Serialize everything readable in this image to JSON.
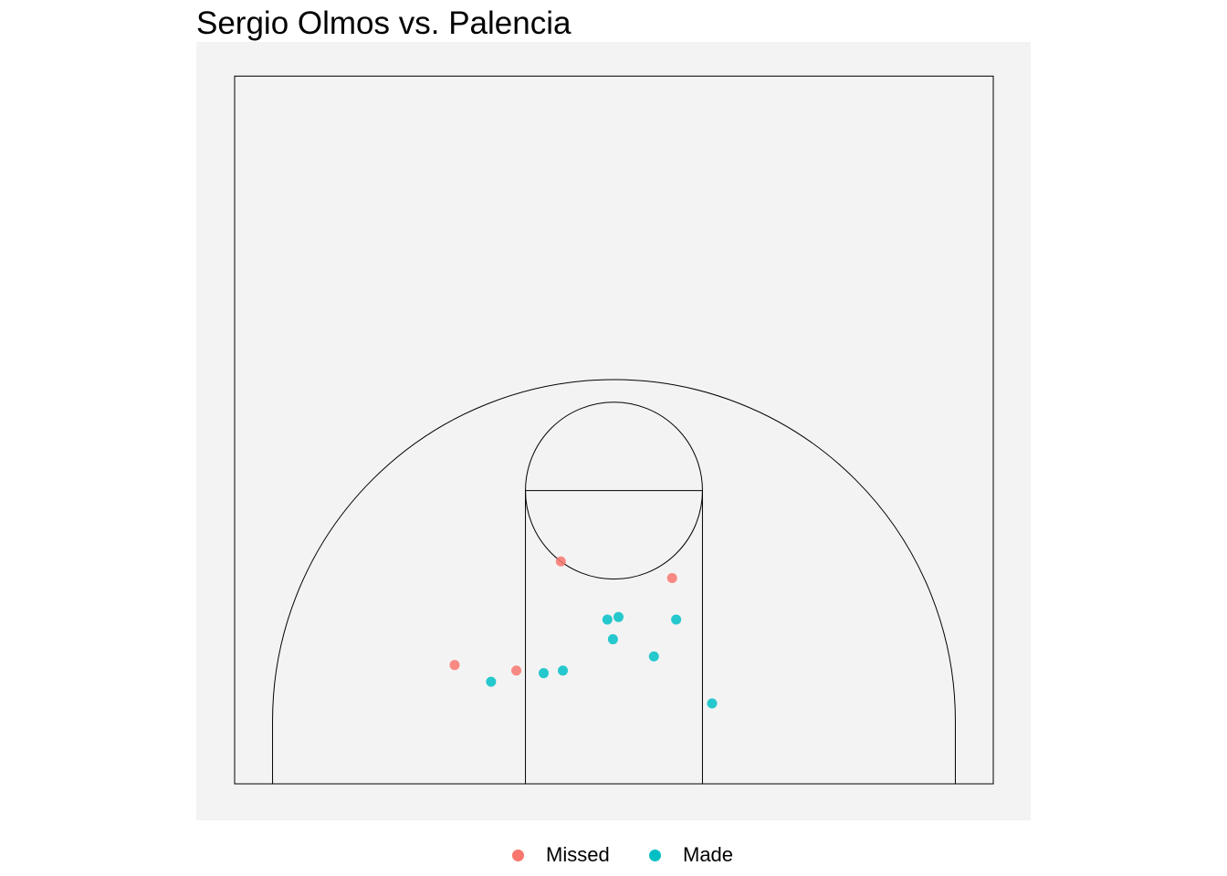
{
  "title": "Sergio Olmos vs. Palencia",
  "colors": {
    "panel": "#f3f3f3",
    "court_lines": "#000000",
    "missed": "#f8766d",
    "made": "#00bfc4"
  },
  "chart_data": {
    "type": "scatter",
    "title": "Sergio Olmos vs. Palencia",
    "xlabel": "",
    "ylabel": "",
    "grid": false,
    "legend_position": "bottom",
    "legend": [
      {
        "label": "Missed",
        "color": "#f8766d"
      },
      {
        "label": "Made",
        "color": "#00bfc4"
      }
    ],
    "court": {
      "units": "m",
      "width": 15,
      "length": 14,
      "key_width": 3.5,
      "free_throw_distance": 5.8,
      "free_throw_circle_radius": 1.75,
      "three_point_radius": 6.75,
      "three_point_corner_offset": 1.25
    },
    "series": [
      {
        "name": "Missed",
        "color": "#f8766d",
        "points": [
          {
            "x": -1.05,
            "y": 4.4
          },
          {
            "x": 1.15,
            "y": 4.07
          },
          {
            "x": -3.15,
            "y": 2.35
          },
          {
            "x": -1.93,
            "y": 2.24
          }
        ]
      },
      {
        "name": "Made",
        "color": "#00bfc4",
        "points": [
          {
            "x": -0.13,
            "y": 3.25
          },
          {
            "x": 0.09,
            "y": 3.3
          },
          {
            "x": 1.23,
            "y": 3.25
          },
          {
            "x": -0.02,
            "y": 2.86
          },
          {
            "x": 0.79,
            "y": 2.52
          },
          {
            "x": -2.43,
            "y": 2.02
          },
          {
            "x": -1.39,
            "y": 2.19
          },
          {
            "x": -1.01,
            "y": 2.24
          },
          {
            "x": 1.94,
            "y": 1.59
          }
        ]
      }
    ]
  }
}
